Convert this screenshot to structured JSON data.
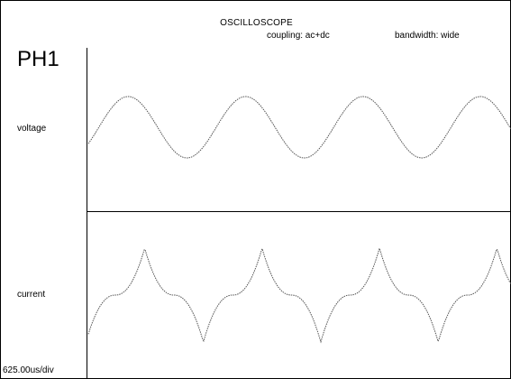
{
  "scope": {
    "title": "OSCILLOSCOPE",
    "coupling": "coupling: ac+dc",
    "bandwidth": "bandwidth: wide",
    "channel": "PH1",
    "timebase": "625.00us/div"
  },
  "traces": [
    {
      "label": "voltage",
      "shape": "sine",
      "cycles": 3.6,
      "phase": -0.09
    },
    {
      "label": "current",
      "shape": "cusp",
      "cycles": 3.6,
      "phase": 0.02
    }
  ],
  "colors": {
    "background": "#ffffff",
    "trace": "#555555",
    "axes": "#000000"
  }
}
